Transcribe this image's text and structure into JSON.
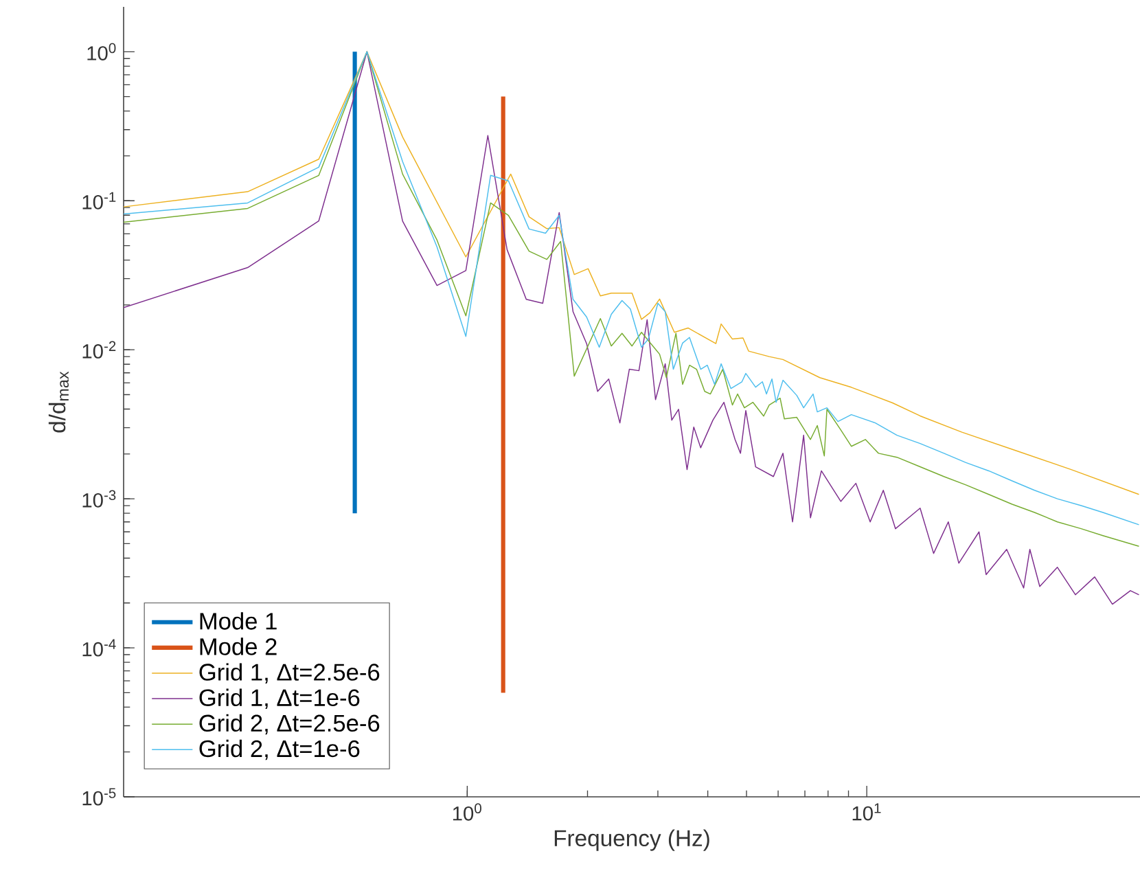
{
  "chart_data": {
    "type": "line",
    "xlabel": "Frequency (Hz)",
    "ylabel": "d/d$_{max}$",
    "log": "xy",
    "legend": "bottom left",
    "marker": "none",
    "line_style": "solid",
    "grid": false,
    "xlim": [
      0.138,
      48.3
    ],
    "ylim": [
      1e-05,
      2
    ],
    "xticks": [
      {
        "value": 1,
        "label": "10$^{0}$"
      },
      {
        "value": 10,
        "label": "10$^{1}$"
      }
    ],
    "yticks": [
      {
        "value": 1e-05,
        "label": "10$^{-5}$"
      },
      {
        "value": 0.0001,
        "label": "10$^{-4}$"
      },
      {
        "value": 0.001,
        "label": "10$^{-3}$"
      },
      {
        "value": 0.01,
        "label": "10$^{-2}$"
      },
      {
        "value": 0.1,
        "label": "10$^{-1}$"
      },
      {
        "value": 1,
        "label": "10$^{0}$"
      }
    ],
    "series": [
      {
        "name": "Mode 1",
        "color": "#0072bd",
        "x": [
          0.523,
          0.523
        ],
        "values": [
          0.0008,
          1
        ]
      },
      {
        "name": "Mode 2",
        "color": "#d95319",
        "x": [
          1.23,
          1.23
        ],
        "values": [
          5e-05,
          0.5
        ]
      },
      {
        "name": "Grid 1, Δt=2.5e-6",
        "color": "#edb120",
        "x": [
          0.138,
          0.282,
          0.425,
          0.561,
          0.689,
          0.992,
          1.285,
          1.428,
          1.582,
          1.699,
          1.853,
          2.007,
          2.154,
          2.294,
          2.585,
          2.73,
          2.865,
          3.03,
          3.3,
          3.57,
          4.19,
          4.32,
          4.61,
          4.9,
          5.06,
          5.7,
          6.17,
          7.63,
          9.15,
          11.6,
          13.6,
          17.3,
          23.7,
          32.5,
          48.0
        ],
        "values": [
          0.091,
          0.115,
          0.19,
          1,
          0.268,
          0.042,
          0.151,
          0.078,
          0.065,
          0.066,
          0.032,
          0.035,
          0.023,
          0.024,
          0.024,
          0.016,
          0.0177,
          0.0219,
          0.0131,
          0.014,
          0.011,
          0.0149,
          0.0118,
          0.012,
          0.0098,
          0.009,
          0.0086,
          0.0065,
          0.0056,
          0.0044,
          0.0036,
          0.0028,
          0.0021,
          0.00157,
          0.00107
        ]
      },
      {
        "name": "Grid 1, Δt=1e-6",
        "color": "#7e2f8e",
        "x": [
          0.138,
          0.282,
          0.425,
          0.561,
          0.689,
          0.84,
          0.992,
          1.126,
          1.258,
          1.405,
          1.545,
          1.699,
          1.84,
          1.99,
          2.12,
          2.26,
          2.41,
          2.545,
          2.69,
          2.82,
          2.96,
          3.13,
          3.25,
          3.38,
          3.55,
          3.69,
          3.84,
          4.12,
          4.39,
          4.68,
          4.83,
          4.98,
          5.27,
          5.84,
          6.17,
          6.52,
          6.95,
          7.23,
          7.7,
          8.27,
          8.61,
          9.39,
          10.2,
          11.0,
          11.8,
          13.6,
          14.7,
          16.0,
          17.0,
          19.1,
          19.9,
          22.4,
          24.7,
          25.6,
          27.1,
          30.0,
          33.3,
          37.2,
          41.2,
          45.7,
          48.0
        ],
        "values": [
          0.0192,
          0.0356,
          0.0733,
          1,
          0.073,
          0.027,
          0.034,
          0.274,
          0.047,
          0.0218,
          0.0205,
          0.0833,
          0.018,
          0.011,
          0.00526,
          0.00637,
          0.00323,
          0.0074,
          0.00724,
          0.0159,
          0.00463,
          0.00805,
          0.00337,
          0.00399,
          0.00157,
          0.00303,
          0.0022,
          0.00337,
          0.00444,
          0.0025,
          0.00202,
          0.00391,
          0.00164,
          0.00141,
          0.00202,
          0.0007,
          0.00267,
          0.000746,
          0.00154,
          0.00114,
          0.00096,
          0.00127,
          0.0007,
          0.00114,
          0.00063,
          0.000865,
          0.00043,
          0.0007,
          0.00037,
          0.0006,
          0.00031,
          0.000458,
          0.000252,
          0.000458,
          0.000258,
          0.000347,
          0.000227,
          0.000299,
          0.000196,
          0.000242,
          0.000227
        ]
      },
      {
        "name": "Grid 2, Δt=2.5e-6",
        "color": "#77ac30",
        "x": [
          0.138,
          0.282,
          0.425,
          0.561,
          0.689,
          0.84,
          0.992,
          1.144,
          1.268,
          1.428,
          1.582,
          1.713,
          1.853,
          2.154,
          2.294,
          2.44,
          2.585,
          2.73,
          3.03,
          3.15,
          3.33,
          3.46,
          3.6,
          3.75,
          3.93,
          4.06,
          4.36,
          4.61,
          4.75,
          4.94,
          5.19,
          5.52,
          5.7,
          6.07,
          6.22,
          6.68,
          7.23,
          7.52,
          7.83,
          7.95,
          8.61,
          9.15,
          9.92,
          10.7,
          11.9,
          13.6,
          15.6,
          17.7,
          20.2,
          23.1,
          26.3,
          30.0,
          34.4,
          39.0,
          48.0
        ],
        "values": [
          0.0718,
          0.0888,
          0.148,
          1,
          0.151,
          0.0545,
          0.0169,
          0.0967,
          0.0798,
          0.0459,
          0.0404,
          0.0533,
          0.00665,
          0.0162,
          0.0106,
          0.0129,
          0.0106,
          0.0131,
          0.00934,
          0.00651,
          0.0129,
          0.00586,
          0.00788,
          0.0074,
          0.00526,
          0.00505,
          0.0074,
          0.00426,
          0.00505,
          0.00408,
          0.00444,
          0.00359,
          0.00426,
          0.00473,
          0.00344,
          0.00352,
          0.0025,
          0.0031,
          0.00194,
          0.00399,
          0.0029,
          0.00225,
          0.0025,
          0.00202,
          0.0019,
          0.00164,
          0.00141,
          0.00124,
          0.00107,
          0.00092,
          0.00081,
          0.0007,
          0.00063,
          0.000566,
          0.00048
        ]
      },
      {
        "name": "Grid 2, Δt=1e-6",
        "color": "#4dbeee",
        "x": [
          0.138,
          0.282,
          0.425,
          0.561,
          0.689,
          0.84,
          0.992,
          1.144,
          1.268,
          1.428,
          1.57,
          1.699,
          1.84,
          1.99,
          2.14,
          2.294,
          2.44,
          2.56,
          2.73,
          2.84,
          3.0,
          3.13,
          3.28,
          3.46,
          3.6,
          3.84,
          3.99,
          4.16,
          4.32,
          4.57,
          4.87,
          4.98,
          5.27,
          5.48,
          5.61,
          5.79,
          5.93,
          6.17,
          6.68,
          6.95,
          7.34,
          7.52,
          7.95,
          8.47,
          9.15,
          10.5,
          11.9,
          13.6,
          15.6,
          17.7,
          20.2,
          23.1,
          26.3,
          30.0,
          34.4,
          39.0,
          48.0
        ],
        "values": [
          0.0815,
          0.0967,
          0.168,
          1,
          0.183,
          0.049,
          0.0123,
          0.148,
          0.136,
          0.0646,
          0.0606,
          0.0798,
          0.0218,
          0.0166,
          0.0104,
          0.0173,
          0.0214,
          0.0188,
          0.0104,
          0.0118,
          0.0205,
          0.018,
          0.0074,
          0.0111,
          0.0121,
          0.0074,
          0.00788,
          0.00586,
          0.00805,
          0.0055,
          0.0061,
          0.00694,
          0.00561,
          0.0061,
          0.00505,
          0.00637,
          0.00444,
          0.00624,
          0.00494,
          0.00408,
          0.00505,
          0.00383,
          0.00408,
          0.0033,
          0.00367,
          0.00323,
          0.00267,
          0.00235,
          0.00202,
          0.00175,
          0.00154,
          0.00132,
          0.00114,
          0.001,
          0.0009,
          0.00081,
          0.00067
        ]
      }
    ]
  }
}
